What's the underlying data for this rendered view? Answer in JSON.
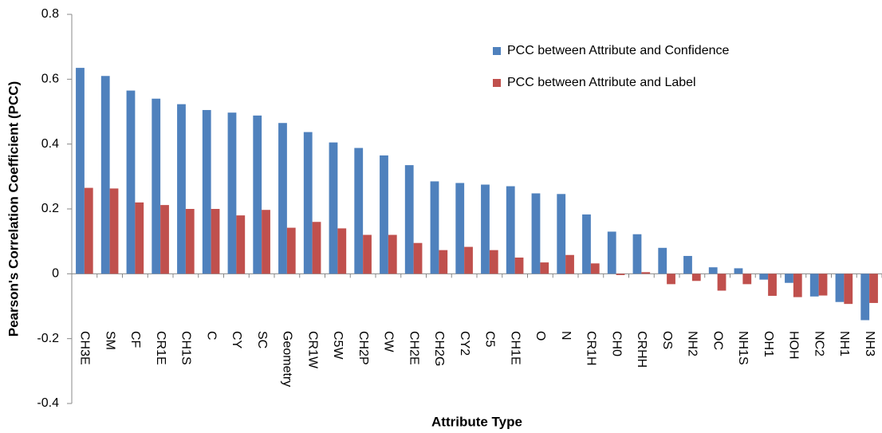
{
  "chart_data": {
    "type": "bar",
    "categories": [
      "CH3E",
      "SM",
      "CF",
      "CR1E",
      "CH1S",
      "C",
      "CY",
      "SC",
      "Geometry",
      "CR1W",
      "C5W",
      "CH2P",
      "CW",
      "CH2E",
      "CH2G",
      "CY2",
      "C5",
      "CH1E",
      "O",
      "N",
      "CR1H",
      "CH0",
      "CRHH",
      "OS",
      "NH2",
      "OC",
      "NH1S",
      "OH1",
      "HOH",
      "NC2",
      "NH1",
      "NH3"
    ],
    "series": [
      {
        "name": "PCC between Attribute and Confidence",
        "color": "#4f81bd",
        "values": [
          0.635,
          0.61,
          0.565,
          0.54,
          0.523,
          0.505,
          0.497,
          0.488,
          0.465,
          0.437,
          0.405,
          0.388,
          0.365,
          0.335,
          0.285,
          0.28,
          0.275,
          0.27,
          0.248,
          0.246,
          0.183,
          0.13,
          0.122,
          0.08,
          0.055,
          0.02,
          0.017,
          -0.018,
          -0.028,
          -0.07,
          -0.087,
          -0.143
        ]
      },
      {
        "name": "PCC between Attribute and Label",
        "color": "#c0504d",
        "values": [
          0.265,
          0.263,
          0.22,
          0.212,
          0.2,
          0.2,
          0.18,
          0.197,
          0.142,
          0.16,
          0.14,
          0.12,
          0.12,
          0.095,
          0.073,
          0.083,
          0.073,
          0.05,
          0.035,
          0.058,
          0.032,
          -0.004,
          0.005,
          -0.032,
          -0.022,
          -0.052,
          -0.032,
          -0.068,
          -0.072,
          -0.067,
          -0.093,
          -0.09
        ]
      }
    ],
    "x_label": "Attribute Type",
    "y_label": "Pearson's Correlation Coefficient (PCC)",
    "ylim": [
      -0.4,
      0.8
    ],
    "yticks": [
      0.8,
      0.6,
      0.4,
      0.2,
      0,
      -0.2,
      -0.4
    ],
    "grid": false,
    "legend": "top-right"
  }
}
